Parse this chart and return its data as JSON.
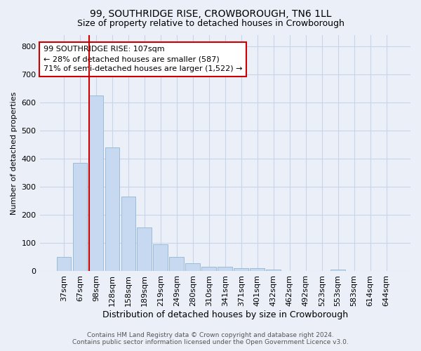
{
  "title": "99, SOUTHRIDGE RISE, CROWBOROUGH, TN6 1LL",
  "subtitle": "Size of property relative to detached houses in Crowborough",
  "xlabel": "Distribution of detached houses by size in Crowborough",
  "ylabel": "Number of detached properties",
  "categories": [
    "37sqm",
    "67sqm",
    "98sqm",
    "128sqm",
    "158sqm",
    "189sqm",
    "219sqm",
    "249sqm",
    "280sqm",
    "310sqm",
    "341sqm",
    "371sqm",
    "401sqm",
    "432sqm",
    "462sqm",
    "492sqm",
    "523sqm",
    "553sqm",
    "583sqm",
    "614sqm",
    "644sqm"
  ],
  "values": [
    50,
    385,
    625,
    440,
    265,
    155,
    97,
    52,
    28,
    15,
    15,
    10,
    10,
    5,
    0,
    0,
    0,
    7,
    0,
    0,
    0
  ],
  "bar_color": "#c6d9f0",
  "bar_edge_color": "#9bbbd8",
  "redline_color": "#cc0000",
  "redline_index": 2,
  "annotation_text": "99 SOUTHRIDGE RISE: 107sqm\n← 28% of detached houses are smaller (587)\n71% of semi-detached houses are larger (1,522) →",
  "annotation_box_color": "#ffffff",
  "annotation_box_edge": "#cc0000",
  "ylim": [
    0,
    840
  ],
  "yticks": [
    0,
    100,
    200,
    300,
    400,
    500,
    600,
    700,
    800
  ],
  "grid_color": "#c8d4e8",
  "background_color": "#eaeff8",
  "title_fontsize": 10,
  "subtitle_fontsize": 9,
  "ylabel_fontsize": 8,
  "xlabel_fontsize": 9,
  "tick_fontsize": 8,
  "annotation_fontsize": 8,
  "footer_line1": "Contains HM Land Registry data © Crown copyright and database right 2024.",
  "footer_line2": "Contains public sector information licensed under the Open Government Licence v3.0."
}
